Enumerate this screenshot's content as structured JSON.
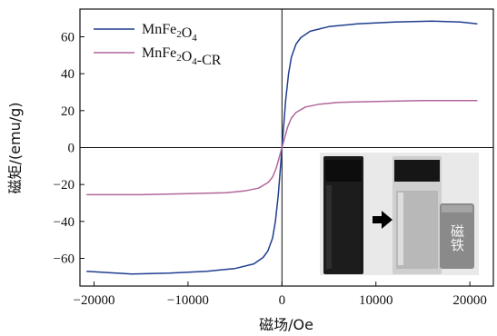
{
  "chart_data": {
    "type": "line",
    "xlabel": "磁场/Oe",
    "ylabel": "磁矩/(emu/g)",
    "xlim": [
      -21500,
      22500
    ],
    "ylim": [
      -75,
      75
    ],
    "xticks": [
      -20000,
      -10000,
      0,
      10000,
      20000
    ],
    "xtick_labels": [
      "−20000",
      "−10000",
      "0",
      "10000",
      "20000"
    ],
    "yticks": [
      -60,
      -40,
      -20,
      0,
      20,
      40,
      60
    ],
    "ytick_labels": [
      "−60",
      "−40",
      "−20",
      "0",
      "20",
      "40",
      "60"
    ],
    "legend_position": "top-left",
    "series": [
      {
        "name": "MnFe2O4",
        "legend_parts": [
          [
            "MnFe",
            ""
          ],
          [
            "2",
            "sub"
          ],
          [
            "O",
            ""
          ],
          [
            "4",
            "sub"
          ]
        ],
        "color": "#1f3f8f",
        "x": [
          -20800,
          -16000,
          -12000,
          -8000,
          -5000,
          -3000,
          -2000,
          -1500,
          -1000,
          -700,
          -400,
          -200,
          0,
          200,
          400,
          700,
          1000,
          1500,
          2000,
          3000,
          5000,
          8000,
          12000,
          16000,
          19000,
          20800
        ],
        "y": [
          -67,
          -68.5,
          -68,
          -67,
          -65.5,
          -63,
          -59.5,
          -56,
          -49,
          -40,
          -26,
          -13,
          0,
          13,
          26,
          40,
          49,
          56,
          59.5,
          63,
          65.5,
          67,
          68,
          68.5,
          68,
          67
        ]
      },
      {
        "name": "MnFe2O4-CR",
        "legend_parts": [
          [
            "MnFe",
            ""
          ],
          [
            "2",
            "sub"
          ],
          [
            "O",
            ""
          ],
          [
            "4",
            "sub"
          ],
          [
            "-CR",
            ""
          ]
        ],
        "color": "#b0679b",
        "x": [
          -20800,
          -15000,
          -10000,
          -6000,
          -4000,
          -2500,
          -1500,
          -1000,
          -600,
          -300,
          0,
          300,
          600,
          1000,
          1500,
          2500,
          4000,
          6000,
          10000,
          15000,
          20800
        ],
        "y": [
          -25.5,
          -25.5,
          -25,
          -24.5,
          -23.5,
          -22,
          -19,
          -16,
          -11,
          -5.5,
          0,
          5.5,
          11,
          16,
          19,
          22,
          23.5,
          24.5,
          25,
          25.5,
          25.5
        ]
      }
    ],
    "inset": {
      "description_label": "磁铁"
    }
  }
}
